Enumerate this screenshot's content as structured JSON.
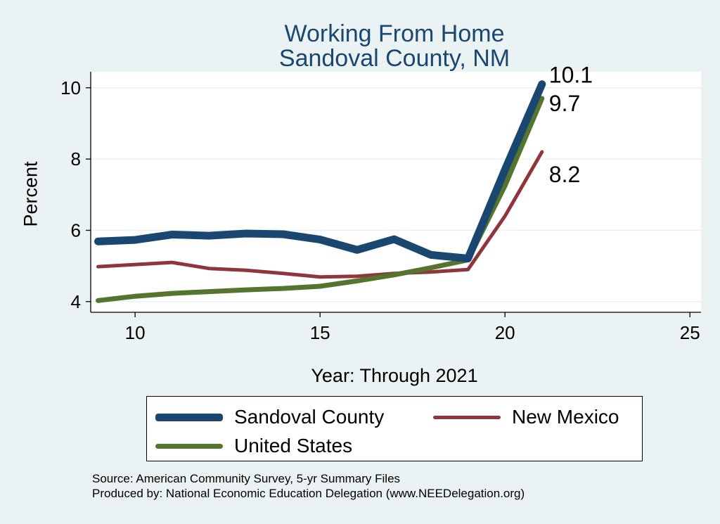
{
  "chart_data": {
    "type": "line",
    "title": "Working From Home",
    "subtitle": "Sandoval County, NM",
    "xlabel": "Year: Through 2021",
    "ylabel": "Percent",
    "xlim": [
      8.8,
      25.3
    ],
    "ylim": [
      3.7,
      10.45
    ],
    "xticks": [
      10,
      15,
      20,
      25
    ],
    "yticks": [
      4,
      6,
      8,
      10
    ],
    "grid": true,
    "legend": "bottom",
    "series": [
      {
        "name": "Sandoval County",
        "color": "#1a476f",
        "x": [
          9,
          10,
          11,
          12,
          13,
          14,
          15,
          16,
          17,
          18,
          19,
          20,
          21
        ],
        "y": [
          5.69,
          5.73,
          5.88,
          5.85,
          5.91,
          5.89,
          5.74,
          5.45,
          5.75,
          5.31,
          5.21,
          7.7,
          10.1
        ],
        "end_label": "10.1"
      },
      {
        "name": "New Mexico",
        "color": "#90353b",
        "x": [
          9,
          10,
          11,
          12,
          13,
          14,
          15,
          16,
          17,
          18,
          19,
          20,
          21
        ],
        "y": [
          4.98,
          5.04,
          5.1,
          4.93,
          4.88,
          4.79,
          4.69,
          4.71,
          4.79,
          4.83,
          4.9,
          6.4,
          8.2
        ],
        "end_label": "8.2"
      },
      {
        "name": "United States",
        "color": "#55752f",
        "x": [
          9,
          10,
          11,
          12,
          13,
          14,
          15,
          16,
          17,
          18,
          19,
          20,
          21
        ],
        "y": [
          4.03,
          4.15,
          4.23,
          4.28,
          4.33,
          4.37,
          4.43,
          4.58,
          4.75,
          4.95,
          5.17,
          7.25,
          9.7
        ],
        "end_label": "9.7"
      }
    ]
  },
  "notes": {
    "source": "Source: American Community Survey, 5-yr Summary Files",
    "produced": "Produced by: National Economic Education Delegation (www.NEEDelegation.org)"
  }
}
